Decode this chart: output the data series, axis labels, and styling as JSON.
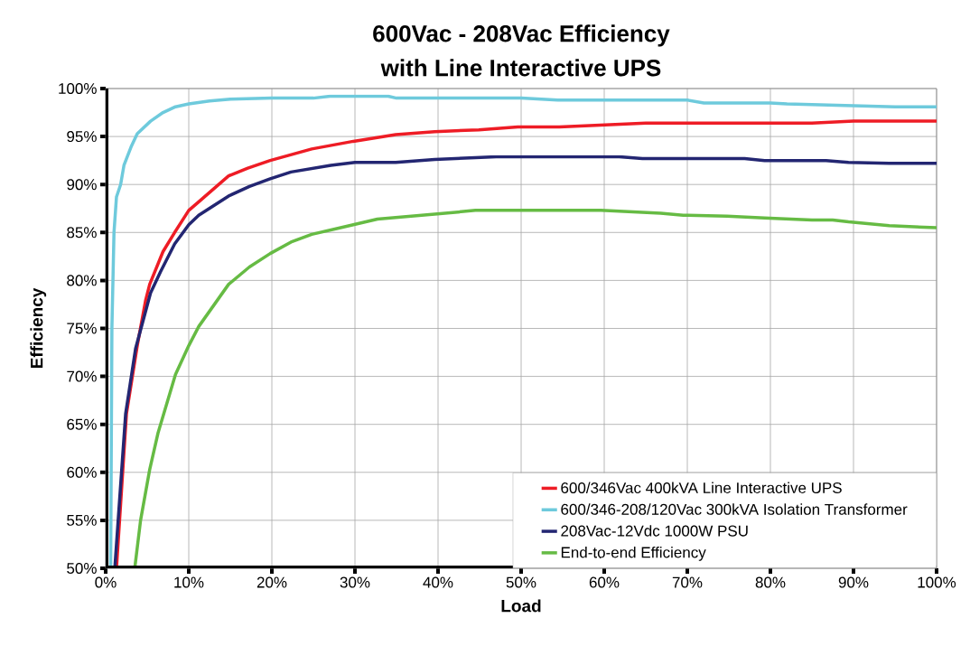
{
  "chart_data": {
    "type": "line",
    "title": "600Vac - 208Vac Efficiency",
    "subtitle": "with Line Interactive UPS",
    "xlabel": "Load",
    "ylabel": "Efficiency",
    "xlim": [
      0,
      100
    ],
    "ylim": [
      50,
      100
    ],
    "xticks": [
      {
        "value": 0,
        "label": "0%"
      },
      {
        "value": 10,
        "label": "10%"
      },
      {
        "value": 20,
        "label": "20%"
      },
      {
        "value": 30,
        "label": "30%"
      },
      {
        "value": 40,
        "label": "40%"
      },
      {
        "value": 50,
        "label": "50%"
      },
      {
        "value": 60,
        "label": "60%"
      },
      {
        "value": 70,
        "label": "70%"
      },
      {
        "value": 80,
        "label": "80%"
      },
      {
        "value": 90,
        "label": "90%"
      },
      {
        "value": 100,
        "label": "100%"
      }
    ],
    "yticks": [
      {
        "value": 50,
        "label": "50%"
      },
      {
        "value": 55,
        "label": "55%"
      },
      {
        "value": 60,
        "label": "60%"
      },
      {
        "value": 65,
        "label": "65%"
      },
      {
        "value": 70,
        "label": "70%"
      },
      {
        "value": 75,
        "label": "75%"
      },
      {
        "value": 80,
        "label": "80%"
      },
      {
        "value": 85,
        "label": "85%"
      },
      {
        "value": 90,
        "label": "90%"
      },
      {
        "value": 95,
        "label": "95%"
      },
      {
        "value": 100,
        "label": "100%"
      }
    ],
    "grid": true,
    "legend": "bottom right",
    "line_style": "solid",
    "series": [
      {
        "name": "600/346Vac 400kVA Line Interactive UPS",
        "color": "#ee1c25",
        "x": [
          1.3,
          2.5,
          3.8,
          4.8,
          5.3,
          6.9,
          8.3,
          10,
          11.2,
          14.8,
          17.1,
          19.8,
          24.8,
          29.8,
          34.9,
          39.6,
          44.9,
          49.6,
          54.6,
          65,
          85,
          90,
          100
        ],
        "values": [
          50,
          66.1,
          73.2,
          77.9,
          79.6,
          83.0,
          85.0,
          87.3,
          88.2,
          90.9,
          91.7,
          92.5,
          93.7,
          94.5,
          95.2,
          95.5,
          95.7,
          96.0,
          96.0,
          96.4,
          96.4,
          96.6,
          96.6
        ]
      },
      {
        "name": "600/346-208/120Vac 300kVA Isolation Transformer",
        "color": "#6ecadc",
        "x": [
          0.6,
          0.75,
          1.0,
          1.3,
          1.8,
          2.2,
          3.1,
          3.8,
          5.4,
          6.9,
          8.4,
          10,
          12.5,
          15,
          20,
          25,
          27,
          34,
          35,
          50,
          54.4,
          70,
          72,
          80,
          82,
          95,
          100
        ],
        "values": [
          50,
          75,
          85,
          88.7,
          90,
          92,
          94,
          95.3,
          96.6,
          97.5,
          98.1,
          98.4,
          98.7,
          98.9,
          99.0,
          99.0,
          99.2,
          99.2,
          99.0,
          99.0,
          98.8,
          98.8,
          98.5,
          98.5,
          98.4,
          98.1,
          98.1
        ]
      },
      {
        "name": "208Vac-12Vdc 1000W PSU",
        "color": "#232672",
        "x": [
          1.1,
          2.4,
          3.6,
          5.4,
          6.6,
          8.3,
          10,
          11.2,
          14.8,
          17.3,
          19.8,
          22.3,
          27.1,
          30,
          34.9,
          39.6,
          44.5,
          47,
          61.8,
          64.6,
          76.9,
          79.3,
          86.7,
          89.4,
          94.3,
          100
        ],
        "values": [
          50,
          66.1,
          72.9,
          78.7,
          80.9,
          83.8,
          85.8,
          86.8,
          88.8,
          89.8,
          90.6,
          91.3,
          92.0,
          92.3,
          92.3,
          92.6,
          92.8,
          92.9,
          92.9,
          92.7,
          92.7,
          92.5,
          92.5,
          92.3,
          92.2,
          92.2
        ]
      },
      {
        "name": "End-to-end Efficiency",
        "color": "#66bb44",
        "x": [
          3.5,
          4.2,
          5.3,
          6.3,
          8.4,
          10,
          11.2,
          14.8,
          17.3,
          19.8,
          22.3,
          24.8,
          29.8,
          32.7,
          39.6,
          44.5,
          59.6,
          66.8,
          69.5,
          74.8,
          79.3,
          85,
          87.5,
          89.4,
          94.3,
          100
        ],
        "values": [
          50,
          55.0,
          60.3,
          64.1,
          70.2,
          73.2,
          75.2,
          79.6,
          81.4,
          82.8,
          84.0,
          84.8,
          85.8,
          86.4,
          86.9,
          87.3,
          87.3,
          87.0,
          86.8,
          86.7,
          86.5,
          86.3,
          86.3,
          86.1,
          85.7,
          85.5
        ]
      }
    ]
  }
}
